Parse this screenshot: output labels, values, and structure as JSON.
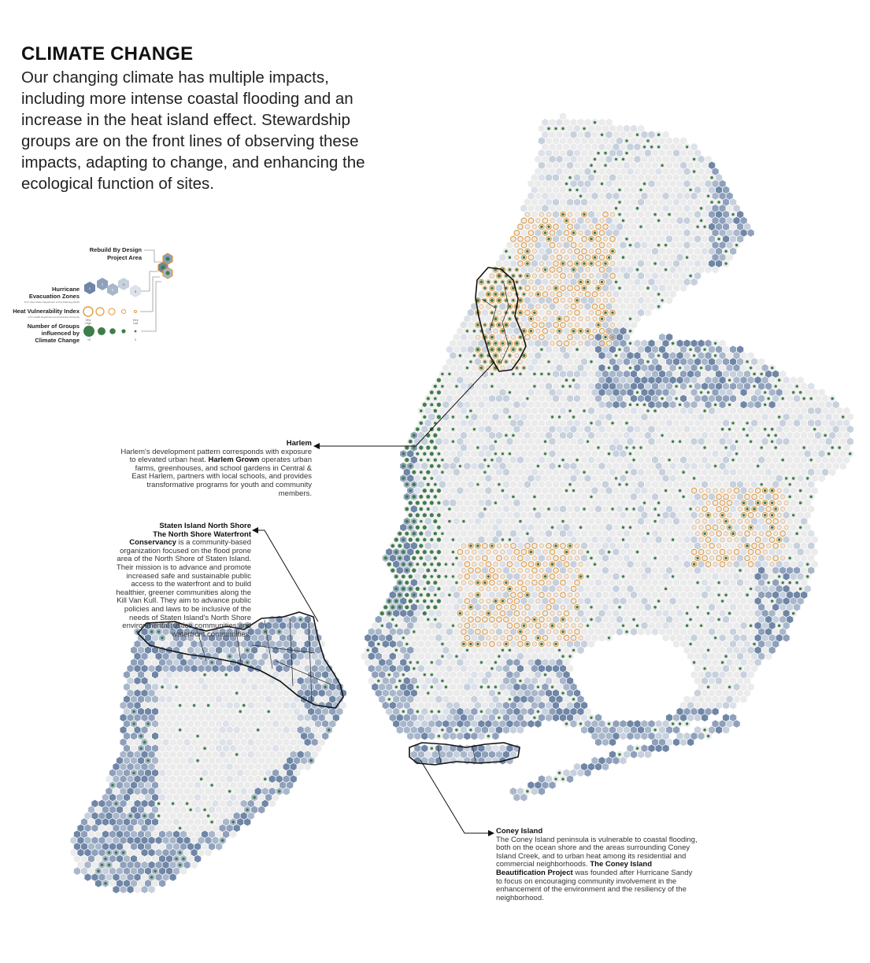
{
  "header": {
    "title": "CLIMATE CHANGE",
    "intro": "Our changing climate has multiple impacts, including more intense coastal flooding and an increase in the heat island effect. Stewardship groups are on the front lines of observing these impacts, adapting to change, and enhancing the ecological function of sites."
  },
  "legend": {
    "rbd_label_1": "Rebuild By Design",
    "rbd_label_2": "Project Area",
    "evac_label_1": "Hurricane",
    "evac_label_2": "Evacuation Zones",
    "evac_source": "NYC Open Data, Department of City Planning (DCP)",
    "evac_zones": [
      "1",
      "2",
      "3",
      "4",
      "5"
    ],
    "hvi_label": "Heat Vulnerability Index",
    "hvi_source": "NYC Health Department and Columbia University",
    "hvi_high_1": "Very",
    "hvi_high_2": "High",
    "hvi_low_1": "Very",
    "hvi_low_2": "Low",
    "groups_label_1": "Number of Groups",
    "groups_label_2": "influenced by",
    "groups_label_3": "Climate Change",
    "groups_max": "10",
    "groups_min": "0"
  },
  "callouts": {
    "harlem": {
      "heading": "Harlem",
      "text_1": "Harlem's development pattern corresponds with exposure to elevated urban heat.",
      "org": "Harlem Grown",
      "text_2": "operates urban farms, greenhouses, and school gardens in Central & East Harlem, partners with local schools, and provides transformative programs for youth and community members."
    },
    "staten_island": {
      "heading": "Staten Island North Shore",
      "org": "The North Shore Waterfront Conservancy",
      "text": "is a community-based organization focused on the flood prone area of the North Shore of Staten Island. Their mission is to advance and promote increased safe and sustainable public access to the waterfront and to build healthier, greener communities along the Kill Van Kull. They aim to advance public policies and laws to be inclusive of the needs of Staten Island's North Shore environmental justice communities and waterfront communities."
    },
    "coney_island": {
      "heading": "Coney Island",
      "text_1": "The Coney Island peninsula is vulnerable to coastal flooding, both on the ocean shore and the areas surrounding Coney Island Creek, and to urban heat among its residential and commercial neighborhoods.",
      "org": "The Coney Island Beautification Project",
      "text_2": "was founded after Hurricane Sandy to focus on encouraging community involvement in the enhancement of the environment and the resiliency of the neighborhood."
    }
  },
  "colors": {
    "zone_1": "#6f86a6",
    "zone_2": "#8ea0bb",
    "zone_3": "#a9b7cb",
    "zone_4": "#c7d0dd",
    "zone_5": "#dde2ea",
    "outside_zone": "#ebebeb",
    "heat_high": "#e39a3c",
    "heat_mid": "#eec28f",
    "group_dot": "#3f7d4a",
    "outline": "#111111"
  }
}
